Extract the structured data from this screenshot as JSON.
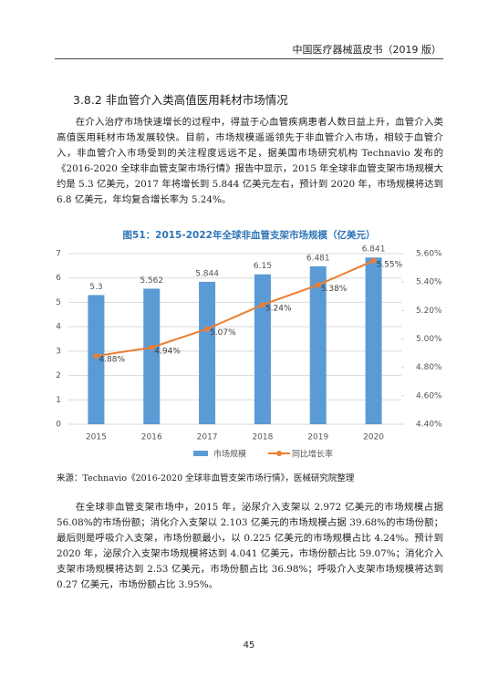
{
  "header": "中国医疗器械蓝皮书（2019 版）",
  "section_title": "3.8.2  非血管介入类高值医用耗材市场情况",
  "paragraphs": [
    "在介入治疗市场快速增长的过程中，得益于心血管疾病患者人数日益上升，血管介入类高值医用耗材市场发展较快。目前，市场规模遥遥领先于非血管介入市场，相较于血管介入，非血管介入市场受到的关注程度远远不足，据美国市场研究机构 Technavio 发布的《2016-2020 全球非血管支架市场行情》报告中显示，2015 年全球非血管支架市场规模大约是 5.3 亿美元，2017 年将增长到 5.844 亿美元左右，预计到 2020 年，市场规模将达到 6.8 亿美元，年均复合增长率为 5.24%。",
    "在全球非血管支架市场中，2015 年，泌尿介入支架以 2.972 亿美元的市场规模占据 56.08%的市场份额；消化介入支架以 2.103 亿美元的市场规模占据 39.68%的市场份额；最后则是呼吸介入支架，市场份额最小，以 0.225 亿美元的市场规模占比 4.24%。预计到 2020 年，泌尿介入支架市场规模将达到 4.041 亿美元，市场份额占比 59.07%；消化介入支架市场规模将达到 2.53 亿美元，市场份额占比 36.98%；呼吸介入支架市场规模将达到 0.27 亿美元，市场份额占比 3.95%。"
  ],
  "chart_data": {
    "type": "bar",
    "title": "图51：2015-2022年全球非血管支架市场规模（亿美元）",
    "categories": [
      "2015",
      "2016",
      "2017",
      "2018",
      "2019",
      "2020"
    ],
    "series": [
      {
        "name": "市场规模",
        "type": "bar",
        "color": "#5b9bd5",
        "values": [
          5.3,
          5.562,
          5.844,
          6.15,
          6.481,
          6.841
        ]
      },
      {
        "name": "同比增长率",
        "type": "line",
        "axis": "y2",
        "color": "#ed7d31",
        "values": [
          4.88,
          4.94,
          5.07,
          5.24,
          5.38,
          5.55
        ],
        "value_labels": [
          "4.88%",
          "4.94%",
          "5.07%",
          "5.24%",
          "5.38%",
          "5.55%"
        ]
      }
    ],
    "ylim": [
      0,
      7
    ],
    "yticks": [
      0,
      1,
      2,
      3,
      4,
      5,
      6,
      7
    ],
    "y2lim": [
      4.4,
      5.6
    ],
    "y2ticks": [
      {
        "value": 4.4,
        "label": "4.40%"
      },
      {
        "value": 4.6,
        "label": "4.60%"
      },
      {
        "value": 4.8,
        "label": "4.80%"
      },
      {
        "value": 5.0,
        "label": "5.00%"
      },
      {
        "value": 5.2,
        "label": "5.20%"
      },
      {
        "value": 5.4,
        "label": "5.40%"
      },
      {
        "value": 5.6,
        "label": "5.60%"
      }
    ],
    "grid": true
  },
  "source": "来源：Technavio《2016-2020 全球非血管支架市场行情》，医械研究院整理",
  "page_number": "45"
}
